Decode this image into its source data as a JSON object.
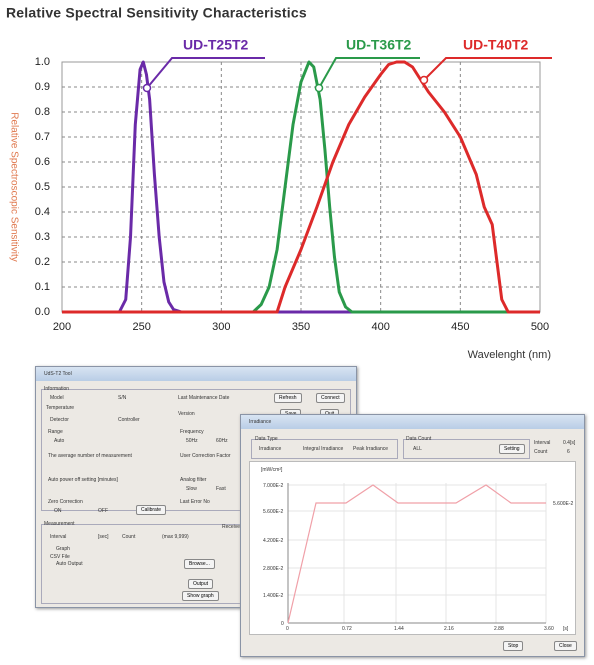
{
  "chart_data": {
    "type": "line",
    "title": "Relative Spectral Sensitivity Characteristics",
    "xlabel": "Wavelenght (nm)",
    "ylabel": "Relative Spectroscopic Sensitivity",
    "xlim": [
      200,
      500
    ],
    "xticks": [
      200,
      250,
      300,
      350,
      400,
      450,
      500
    ],
    "ylim": [
      0,
      1
    ],
    "yticks": [
      {
        "value": 0,
        "label": "0.0"
      },
      0.1,
      0.2,
      0.3,
      0.4,
      0.5,
      0.6,
      0.7,
      0.8,
      0.9,
      {
        "value": 1,
        "label": "1.0"
      }
    ],
    "grid": true,
    "series": [
      {
        "name": "UD-T25T2",
        "color": "#6a2aa8",
        "x": [
          200,
          236,
          240,
          243,
          246,
          249,
          251,
          253,
          255,
          258,
          261,
          264,
          267,
          270,
          275,
          500
        ],
        "values": [
          0,
          0,
          0.05,
          0.3,
          0.75,
          0.97,
          1.0,
          0.95,
          0.85,
          0.55,
          0.3,
          0.12,
          0.04,
          0.01,
          0,
          0
        ]
      },
      {
        "name": "UD-T36T2",
        "color": "#2a9a4a",
        "x": [
          200,
          320,
          325,
          330,
          335,
          340,
          345,
          350,
          355,
          358,
          362,
          365,
          368,
          371,
          374,
          378,
          382,
          500
        ],
        "values": [
          0,
          0,
          0.03,
          0.1,
          0.25,
          0.5,
          0.75,
          0.92,
          1.0,
          0.98,
          0.85,
          0.65,
          0.42,
          0.22,
          0.08,
          0.02,
          0,
          0
        ]
      },
      {
        "name": "UD-T40T2",
        "color": "#dd2a2a",
        "x": [
          200,
          335,
          340,
          350,
          360,
          370,
          380,
          390,
          400,
          405,
          410,
          415,
          420,
          425,
          430,
          440,
          450,
          460,
          465,
          470,
          473,
          476,
          480,
          500
        ],
        "values": [
          0,
          0,
          0.1,
          0.25,
          0.42,
          0.6,
          0.75,
          0.86,
          0.95,
          0.99,
          1.0,
          1.0,
          0.98,
          0.93,
          0.88,
          0.8,
          0.7,
          0.55,
          0.42,
          0.35,
          0.2,
          0.05,
          0,
          0
        ]
      }
    ]
  },
  "screenshots": {
    "tool_window": {
      "title": "UdS-T2 Tool",
      "information": "Information",
      "model": "Model",
      "sn": "S/N",
      "last_maintenance": "Last Maintenance Date",
      "refresh": "Refresh",
      "connect": "Connect",
      "temperature": "Temperature",
      "detector": "Detector",
      "controller": "Controller",
      "version": "Version",
      "save": "Save",
      "quit": "Quit",
      "range": "Range",
      "auto": "Auto",
      "frequency": "Frequency",
      "hz50": "50Hz",
      "hz60": "60Hz",
      "average": "The average number of measurement",
      "user_correction": "User Correction Factor",
      "power_off": "Auto power off setting [minutes]",
      "analog_filter": "Analog filter",
      "slow": "Slow",
      "fast": "Fast",
      "zero_correction": "Zero Correction",
      "on": "ON",
      "off": "OFF",
      "calibrate": "Calibrate",
      "last_error": "Last Error No",
      "measurement": "Measurement",
      "interval": "Interval",
      "sec": "[sec]",
      "count": "Count",
      "max": "(max 9,999)",
      "graph": "Graph",
      "csv": "CSV File",
      "auto_output": "Auto Output",
      "browse": "Browse...",
      "output": "Output",
      "show_graph": "Show graph",
      "received": "Received"
    },
    "irradiance_window": {
      "title": "Irradiance",
      "data_type": "Data Type",
      "irradiance": "Irradiance",
      "integral": "Integral Irradiance",
      "peak": "Peak Irradiance",
      "data_count": "Data Count",
      "all": "ALL",
      "setting": "Setting",
      "interval": "Interval",
      "interval_value": "0.4[s]",
      "count": "Count",
      "count_value": "6",
      "unit": "[mW/cm²]",
      "yticks": [
        "7.000E-2",
        "5.600E-2",
        "4.200E-2",
        "2.800E-2",
        "1.400E-2",
        "0"
      ],
      "xticks": [
        "0",
        "0.72",
        "1.44",
        "2.16",
        "2.88",
        "3.60"
      ],
      "xunit": "[s]",
      "last_value": "5.600E-2",
      "stop": "Stop",
      "close": "Close"
    }
  }
}
